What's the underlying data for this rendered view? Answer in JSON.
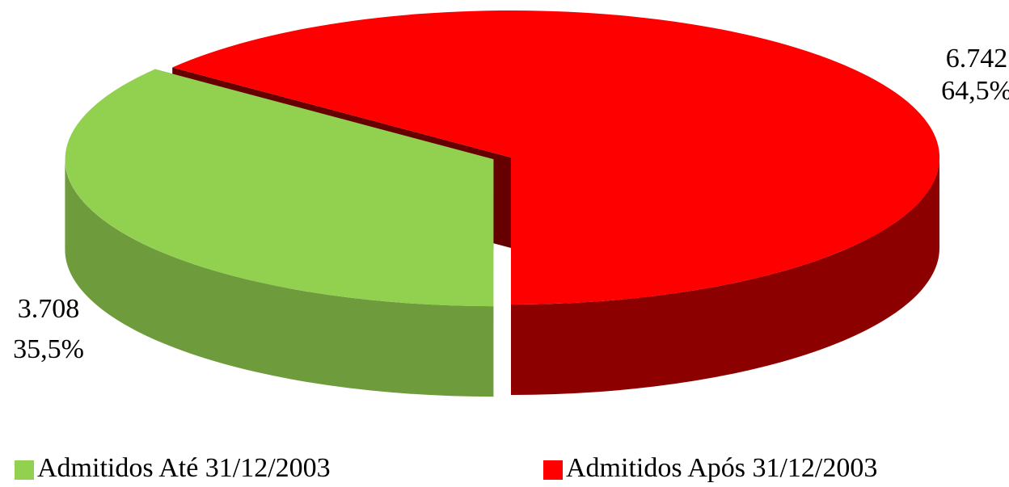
{
  "chart_data": {
    "type": "pie",
    "categories": [
      "Admitidos Até 31/12/2003",
      "Admitidos Após 31/12/2003"
    ],
    "values": [
      3708,
      6742
    ],
    "value_labels": [
      "3.708",
      "6.742"
    ],
    "percentages": [
      35.5,
      64.5
    ],
    "percentage_labels": [
      "35,5%",
      "64,5%"
    ],
    "colors": [
      "#92d050",
      "#ff0000"
    ],
    "legend": "bottom"
  }
}
